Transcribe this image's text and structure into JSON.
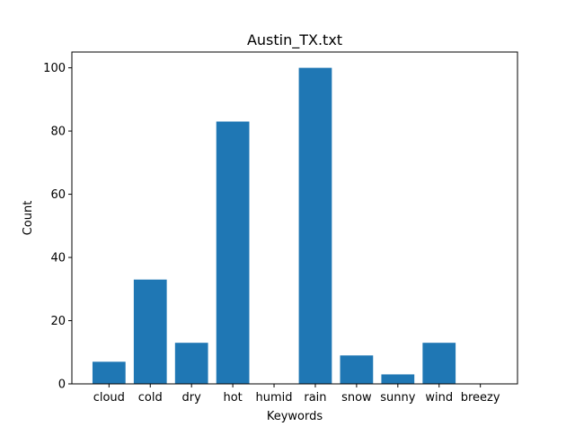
{
  "chart_data": {
    "type": "bar",
    "title": "Austin_TX.txt",
    "xlabel": "Keywords",
    "ylabel": "Count",
    "categories": [
      "cloud",
      "cold",
      "dry",
      "hot",
      "humid",
      "rain",
      "snow",
      "sunny",
      "wind",
      "breezy"
    ],
    "values": [
      7,
      33,
      13,
      83,
      0,
      100,
      9,
      3,
      13,
      0
    ],
    "ylim": [
      0,
      105
    ],
    "yticks": [
      "0",
      "20",
      "40",
      "60",
      "80",
      "100"
    ],
    "grid": false,
    "bar_color": "#1f77b4"
  }
}
